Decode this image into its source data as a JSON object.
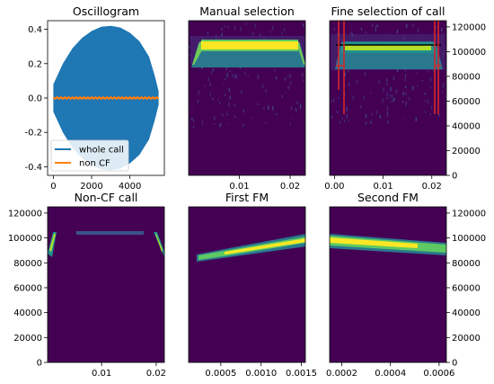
{
  "chart_data": [
    {
      "type": "line",
      "title": "Oscillogram",
      "xlabel": "",
      "ylabel": "",
      "xlim": [
        -300,
        5800
      ],
      "ylim": [
        -0.45,
        0.45
      ],
      "xticks": [
        "0",
        "2000",
        "4000"
      ],
      "yticks": [
        "0.4",
        "0.2",
        "0.0",
        "-0.2",
        "-0.4"
      ],
      "series": [
        {
          "name": "whole call",
          "color": "#1f77b4",
          "envelope": {
            "x": [
              0,
              500,
              1000,
              1500,
              2000,
              2500,
              3000,
              3500,
              4000,
              4500,
              5000,
              5300,
              5500
            ],
            "amplitude": [
              0.08,
              0.2,
              0.29,
              0.35,
              0.39,
              0.415,
              0.42,
              0.41,
              0.38,
              0.33,
              0.24,
              0.13,
              0.04
            ]
          }
        },
        {
          "name": "non CF",
          "color": "#ff7f0e",
          "values_approx": 0.0
        }
      ],
      "legend": "lower-left"
    },
    {
      "type": "heatmap",
      "title": "Manual selection",
      "xticks": [
        "0.01",
        "0.02"
      ],
      "xlim": [
        0,
        0.023
      ],
      "colormap": "viridis",
      "band": {
        "freq_center": 103000,
        "t_start": 0.0003,
        "t_end": 0.0225
      }
    },
    {
      "type": "heatmap",
      "title": "Fine selection of call",
      "xticks": [
        "0.00",
        "0.01",
        "0.02"
      ],
      "yticks": [
        "120000",
        "100000",
        "80000",
        "60000",
        "40000",
        "20000",
        "0"
      ],
      "ylim": [
        0,
        125000
      ],
      "xlim": [
        -0.001,
        0.023
      ],
      "colormap": "viridis",
      "markers": {
        "black_line_freq": 104000,
        "red_lines_t": [
          0.0005,
          0.0015,
          0.0205,
          0.021
        ]
      }
    },
    {
      "type": "heatmap",
      "title": "Non-CF call",
      "xticks": [
        "0.01",
        "0.02"
      ],
      "yticks": [
        "120000",
        "100000",
        "80000",
        "60000",
        "40000",
        "20000",
        "0"
      ],
      "ylim": [
        0,
        125000
      ],
      "colormap": "viridis"
    },
    {
      "type": "heatmap",
      "title": "First FM",
      "xticks": [
        "0.0005",
        "0.0010",
        "0.0015"
      ],
      "xlim": [
        0.0001,
        0.00155
      ],
      "colormap": "viridis",
      "band": {
        "f_start": 88000,
        "f_end": 97000
      }
    },
    {
      "type": "heatmap",
      "title": "Second FM",
      "xticks": [
        "0.0002",
        "0.0004",
        "0.0006"
      ],
      "yticks": [
        "120000",
        "100000",
        "80000",
        "60000",
        "40000",
        "20000",
        "0"
      ],
      "ylim": [
        0,
        125000
      ],
      "xlim": [
        0.00015,
        0.00063
      ],
      "colormap": "viridis",
      "band": {
        "f_start": 99000,
        "f_end": 92000
      }
    }
  ]
}
